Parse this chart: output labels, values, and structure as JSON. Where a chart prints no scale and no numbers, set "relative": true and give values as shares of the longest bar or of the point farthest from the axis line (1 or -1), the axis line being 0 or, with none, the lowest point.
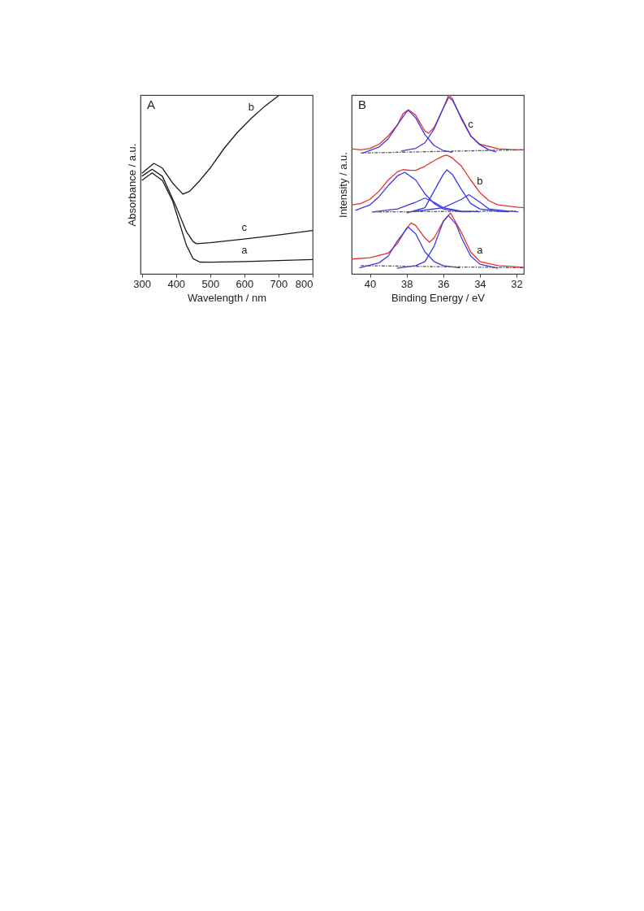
{
  "chart_data": [
    {
      "type": "line",
      "relative": true,
      "xlabel": "Wavelength / nm",
      "ylabel": "Absorbance / a.u.",
      "xlim": [
        296,
        800
      ],
      "xticks": [
        300,
        400,
        500,
        600,
        700,
        800
      ],
      "tick_labels": "x",
      "grid": false,
      "annotations": [
        "A"
      ],
      "series": [
        {
          "name": "a",
          "color": "#1a1a1a",
          "x": [
            300,
            330,
            360,
            390,
            410,
            430,
            450,
            470,
            500,
            600,
            700,
            800
          ],
          "values": [
            0.523,
            0.565,
            0.523,
            0.408,
            0.285,
            0.162,
            0.085,
            0.066,
            0.065,
            0.069,
            0.074,
            0.08
          ]
        },
        {
          "name": "b",
          "color": "#1a1a1a",
          "x": [
            300,
            335,
            360,
            390,
            420,
            440,
            470,
            500,
            540,
            580,
            620,
            660,
            700,
            705
          ],
          "values": [
            0.562,
            0.618,
            0.592,
            0.508,
            0.446,
            0.462,
            0.523,
            0.592,
            0.7,
            0.792,
            0.869,
            0.938,
            0.997,
            1.0
          ]
        },
        {
          "name": "c",
          "color": "#1a1a1a",
          "x": [
            300,
            330,
            360,
            400,
            430,
            450,
            460,
            500,
            600,
            700,
            800
          ],
          "values": [
            0.546,
            0.585,
            0.546,
            0.377,
            0.238,
            0.18,
            0.169,
            0.174,
            0.195,
            0.218,
            0.243
          ]
        }
      ]
    },
    {
      "type": "line",
      "relative": true,
      "xlabel": "Binding Energy / eV",
      "ylabel": "Intensity / a.u.",
      "xlim": [
        41,
        31.6
      ],
      "xticks": [
        40,
        38,
        36,
        34,
        32
      ],
      "tick_labels": "x",
      "grid": false,
      "annotations": [
        "B"
      ],
      "series": [
        {
          "color": "#3a3ae8",
          "x": [
            40.58,
            39.5,
            39,
            38.5,
            37.92,
            37.5,
            37,
            36.5,
            36,
            35.1
          ],
          "values": [
            0.034,
            0.062,
            0.1,
            0.185,
            0.262,
            0.224,
            0.123,
            0.069,
            0.046,
            0.034
          ]
        },
        {
          "color": "#3a3ae8",
          "x": [
            38.53,
            37.5,
            37,
            36.5,
            36,
            35.72,
            35.3,
            35,
            34.5,
            34,
            33
          ],
          "values": [
            0.031,
            0.046,
            0.069,
            0.154,
            0.293,
            0.327,
            0.278,
            0.201,
            0.1,
            0.054,
            0.031
          ]
        },
        {
          "color": "#555555",
          "line_style": "dashed",
          "x": [
            40.5,
            31.6
          ],
          "values": [
            0.046,
            0.034
          ]
        },
        {
          "name": "a",
          "color": "#e8302a",
          "x": [
            41,
            40,
            39,
            38.5,
            38,
            37.75,
            37.5,
            37,
            36.75,
            36.5,
            36,
            35.6,
            35,
            34.5,
            34,
            33,
            32,
            31.6
          ],
          "values": [
            0.083,
            0.09,
            0.116,
            0.17,
            0.255,
            0.285,
            0.27,
            0.201,
            0.177,
            0.201,
            0.293,
            0.34,
            0.231,
            0.123,
            0.069,
            0.046,
            0.039,
            0.037
          ]
        },
        {
          "color": "#3a3ae8",
          "x": [
            40.8,
            40,
            39.5,
            39,
            38.5,
            38.1,
            37.5,
            37,
            36.5,
            36,
            35,
            34.5
          ],
          "values": [
            0.355,
            0.386,
            0.432,
            0.494,
            0.548,
            0.568,
            0.525,
            0.448,
            0.394,
            0.363,
            0.347,
            0.347
          ]
        },
        {
          "color": "#3a3ae8",
          "x": [
            39.8,
            38.5,
            37.5,
            37,
            36.5,
            36,
            35,
            34
          ],
          "values": [
            0.347,
            0.363,
            0.401,
            0.424,
            0.401,
            0.37,
            0.35,
            0.347
          ]
        },
        {
          "color": "#3a3ae8",
          "x": [
            38,
            37,
            36.5,
            36,
            35.8,
            35.5,
            35,
            34.5,
            34,
            33,
            32.4
          ],
          "values": [
            0.34,
            0.37,
            0.463,
            0.556,
            0.582,
            0.556,
            0.471,
            0.394,
            0.363,
            0.35,
            0.347
          ]
        },
        {
          "color": "#3a3ae8",
          "x": [
            37.5,
            36,
            35,
            34.6,
            34,
            33.5,
            32.5,
            31.9
          ],
          "values": [
            0.35,
            0.37,
            0.417,
            0.443,
            0.401,
            0.363,
            0.352,
            0.347
          ]
        },
        {
          "color": "#555555",
          "line_style": "dashed",
          "x": [
            39.9,
            32
          ],
          "values": [
            0.346,
            0.352
          ]
        },
        {
          "name": "b",
          "color": "#e8302a",
          "x": [
            41,
            40.5,
            40,
            39.5,
            39,
            38.5,
            38.2,
            37.8,
            37.5,
            37,
            36.5,
            36,
            35.8,
            35.5,
            35,
            34.5,
            34,
            33.5,
            33,
            32,
            31.6
          ],
          "values": [
            0.386,
            0.394,
            0.417,
            0.463,
            0.525,
            0.571,
            0.583,
            0.579,
            0.579,
            0.602,
            0.633,
            0.66,
            0.664,
            0.648,
            0.602,
            0.525,
            0.455,
            0.409,
            0.386,
            0.373,
            0.37
          ]
        },
        {
          "color": "#3a3ae8",
          "x": [
            40.4,
            39.5,
            39,
            38.5,
            38,
            37.9,
            37.5,
            37,
            36.5,
            36,
            35.5
          ],
          "values": [
            0.676,
            0.71,
            0.756,
            0.833,
            0.907,
            0.914,
            0.872,
            0.779,
            0.718,
            0.69,
            0.679
          ]
        },
        {
          "color": "#3a3ae8",
          "x": [
            38.3,
            37.5,
            37,
            36.5,
            36,
            35.7,
            35.5,
            35,
            34.5,
            34,
            33.5,
            33.1
          ],
          "values": [
            0.687,
            0.702,
            0.733,
            0.81,
            0.926,
            0.988,
            0.972,
            0.872,
            0.772,
            0.722,
            0.694,
            0.682
          ]
        },
        {
          "color": "#555555",
          "line_style": "dashed",
          "x": [
            40.5,
            31.6
          ],
          "values": [
            0.676,
            0.694
          ]
        },
        {
          "name": "c",
          "color": "#e8302a",
          "x": [
            41,
            40.5,
            40,
            39.5,
            39,
            38.5,
            38.2,
            37.9,
            37.5,
            37,
            36.8,
            36.5,
            36,
            35.7,
            35.5,
            35,
            34.5,
            34,
            33,
            32,
            31.6
          ],
          "values": [
            0.699,
            0.694,
            0.702,
            0.725,
            0.772,
            0.833,
            0.895,
            0.918,
            0.887,
            0.799,
            0.787,
            0.818,
            0.926,
            1.0,
            0.98,
            0.864,
            0.772,
            0.725,
            0.699,
            0.694,
            0.694
          ]
        }
      ]
    }
  ]
}
